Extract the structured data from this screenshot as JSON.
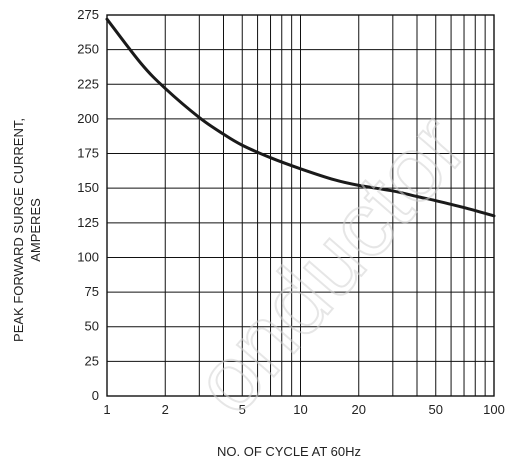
{
  "chart_data": {
    "type": "line",
    "xlabel": "NO. OF CYCLE AT 60Hz",
    "ylabel_lines": [
      "PEAK FORWARD SURGE CURRENT,",
      "AMPERES"
    ],
    "x_scale": "log",
    "xlim": [
      1,
      100
    ],
    "ylim": [
      0,
      275
    ],
    "x_ticks": [
      1,
      2,
      5,
      10,
      20,
      50,
      100
    ],
    "y_ticks": [
      0,
      25,
      50,
      75,
      100,
      125,
      150,
      175,
      200,
      225,
      250,
      275
    ],
    "grid": true,
    "series": [
      {
        "x": [
          1,
          1.5,
          2,
          3,
          4,
          5,
          7,
          10,
          15,
          20,
          30,
          40,
          50,
          70,
          100
        ],
        "values": [
          272,
          240,
          222,
          201,
          189,
          181,
          172,
          164,
          156,
          152,
          148,
          144,
          141,
          136,
          130
        ]
      }
    ]
  },
  "watermark": "onductor",
  "colors": {
    "curve": "#1a1a1a",
    "grid": "#111111",
    "watermark": "#d3d3d3"
  }
}
